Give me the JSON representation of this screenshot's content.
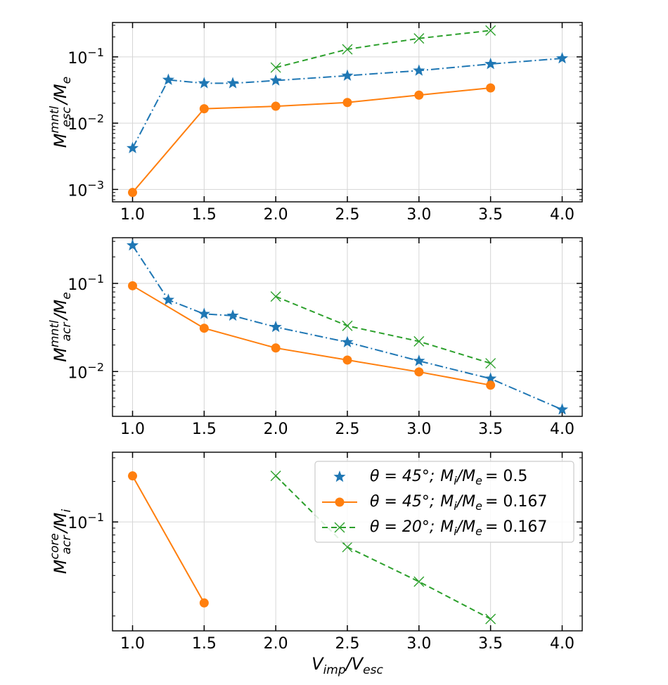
{
  "chart_data": [
    {
      "type": "line",
      "id": "panel1",
      "ylabel_main": "M",
      "ylabel_sup": "mntl",
      "ylabel_sub": "esc",
      "ylabel_tail": "/M",
      "ylabel_tail_sub": "e",
      "yscale": "log",
      "ylim": [
        0.00065,
        0.33
      ],
      "xlim": [
        0.86,
        4.14
      ],
      "xticks": [
        1.0,
        1.5,
        2.0,
        2.5,
        3.0,
        3.5,
        4.0
      ],
      "xtick_labels": [
        "1.0",
        "1.5",
        "2.0",
        "2.5",
        "3.0",
        "3.5",
        "4.0"
      ],
      "yticks": [
        0.001,
        0.01,
        0.1
      ],
      "ytick_labels": [
        {
          "base": "10",
          "exp": "−3"
        },
        {
          "base": "10",
          "exp": "−2"
        },
        {
          "base": "10",
          "exp": "−1"
        }
      ],
      "grid": true,
      "series": [
        {
          "name": "θ = 45°; Mi/Me = 0.5",
          "style": "star",
          "x": [
            1.0,
            1.25,
            1.5,
            1.7,
            2.0,
            2.5,
            3.0,
            3.5,
            4.0
          ],
          "y": [
            0.0042,
            0.045,
            0.04,
            0.04,
            0.044,
            0.052,
            0.062,
            0.078,
            0.095
          ]
        },
        {
          "name": "θ = 45°; Mi/Me = 0.167",
          "style": "circle",
          "x": [
            1.0,
            1.5,
            2.0,
            2.5,
            3.0,
            3.5
          ],
          "y": [
            0.0009,
            0.0165,
            0.018,
            0.0205,
            0.0265,
            0.034
          ]
        },
        {
          "name": "θ = 20°; Mi/Me = 0.167",
          "style": "cross",
          "x": [
            2.0,
            2.5,
            3.0,
            3.5
          ],
          "y": [
            0.069,
            0.13,
            0.19,
            0.25
          ]
        }
      ]
    },
    {
      "type": "line",
      "id": "panel2",
      "ylabel_main": "M",
      "ylabel_sup": "mntl",
      "ylabel_sub": "acr",
      "ylabel_tail": "/M",
      "ylabel_tail_sub": "e",
      "yscale": "log",
      "ylim": [
        0.0031,
        0.33
      ],
      "xlim": [
        0.86,
        4.14
      ],
      "xticks": [
        1.0,
        1.5,
        2.0,
        2.5,
        3.0,
        3.5,
        4.0
      ],
      "xtick_labels": [
        "1.0",
        "1.5",
        "2.0",
        "2.5",
        "3.0",
        "3.5",
        "4.0"
      ],
      "yticks": [
        0.01,
        0.1
      ],
      "ytick_labels": [
        {
          "base": "10",
          "exp": "−2"
        },
        {
          "base": "10",
          "exp": "−1"
        }
      ],
      "grid": true,
      "series": [
        {
          "name": "θ = 45°; Mi/Me = 0.5",
          "style": "star",
          "x": [
            1.0,
            1.25,
            1.5,
            1.7,
            2.0,
            2.5,
            3.0,
            3.5,
            4.0
          ],
          "y": [
            0.27,
            0.065,
            0.045,
            0.043,
            0.032,
            0.0215,
            0.0132,
            0.0083,
            0.0037
          ]
        },
        {
          "name": "θ = 45°; Mi/Me = 0.167",
          "style": "circle",
          "x": [
            1.0,
            1.5,
            2.0,
            2.5,
            3.0,
            3.5
          ],
          "y": [
            0.094,
            0.031,
            0.0185,
            0.0135,
            0.0099,
            0.007
          ]
        },
        {
          "name": "θ = 20°; Mi/Me = 0.167",
          "style": "cross",
          "x": [
            2.0,
            2.5,
            3.0,
            3.5
          ],
          "y": [
            0.071,
            0.033,
            0.022,
            0.0124
          ]
        }
      ]
    },
    {
      "type": "line",
      "id": "panel3",
      "ylabel_main": "M",
      "ylabel_sup": "core",
      "ylabel_sub": "acr",
      "ylabel_tail": "/M",
      "ylabel_tail_sub": "i",
      "xlabel_main": "V",
      "xlabel_sub": "imp",
      "xlabel_tail": "/V",
      "xlabel_tail_sub": "esc",
      "yscale": "log",
      "ylim": [
        0.0155,
        0.33
      ],
      "xlim": [
        0.86,
        4.14
      ],
      "xticks": [
        1.0,
        1.5,
        2.0,
        2.5,
        3.0,
        3.5,
        4.0
      ],
      "xtick_labels": [
        "1.0",
        "1.5",
        "2.0",
        "2.5",
        "3.0",
        "3.5",
        "4.0"
      ],
      "yticks": [
        0.1
      ],
      "ytick_labels": [
        {
          "base": "10",
          "exp": "−1"
        }
      ],
      "grid": true,
      "series": [
        {
          "name": "θ = 45°; Mi/Me = 0.167",
          "style": "circle",
          "x": [
            1.0,
            1.5
          ],
          "y": [
            0.22,
            0.025
          ]
        },
        {
          "name": "θ = 20°; Mi/Me = 0.167",
          "style": "cross",
          "x": [
            2.0,
            2.5,
            3.0,
            3.5
          ],
          "y": [
            0.22,
            0.065,
            0.036,
            0.019
          ]
        }
      ]
    }
  ],
  "legend": {
    "location": "top-right of bottom panel",
    "entries": [
      {
        "style": "star",
        "theta": "θ = 45°;",
        "ratio_value": "= 0.5"
      },
      {
        "style": "circle",
        "theta": "θ = 45°;",
        "ratio_value": "= 0.167"
      },
      {
        "style": "cross",
        "theta": "θ = 20°;",
        "ratio_value": "= 0.167"
      }
    ],
    "ratio_main": "M",
    "ratio_sub_i": "i",
    "ratio_slash": "/M",
    "ratio_sub_e": "e"
  },
  "colors": {
    "star": "#1f77b4",
    "circle": "#ff7f0e",
    "cross": "#2ca02c",
    "grid": "#d6d6d6",
    "axis": "#000000"
  }
}
